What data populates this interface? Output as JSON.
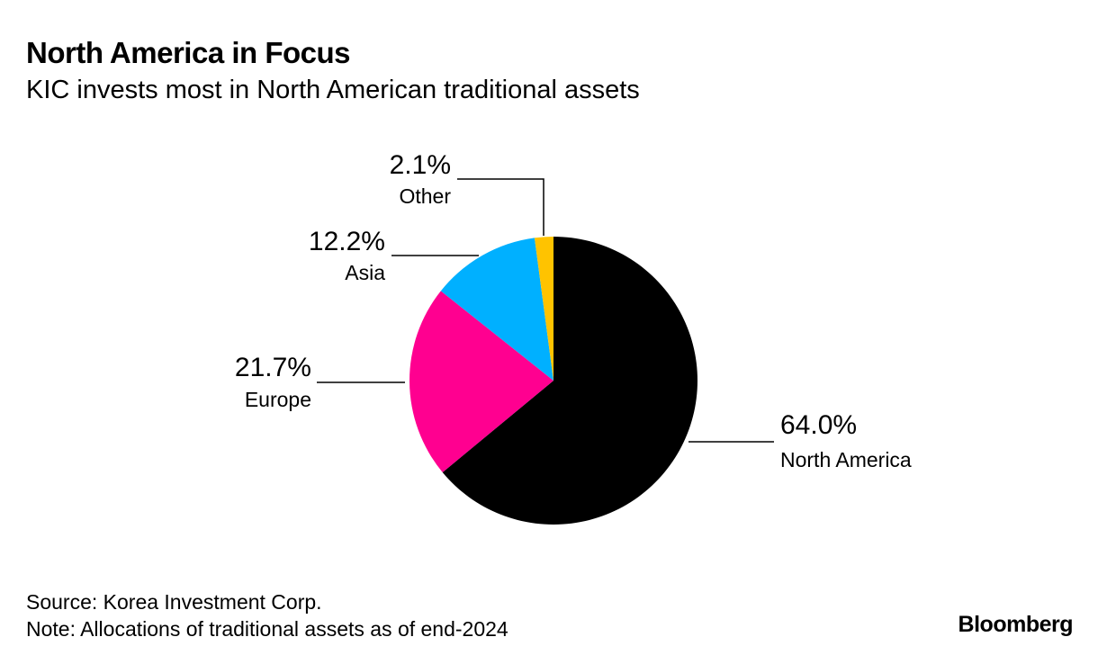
{
  "chart_data": {
    "type": "pie",
    "title": "North America in Focus",
    "subtitle": "KIC invests most in North American traditional assets",
    "start_angle_deg": 0,
    "direction": "clockwise",
    "slices": [
      {
        "label": "North America",
        "value": 64.0,
        "value_label": "64.0%",
        "color": "#000000"
      },
      {
        "label": "Europe",
        "value": 21.7,
        "value_label": "21.7%",
        "color": "#ff0090"
      },
      {
        "label": "Asia",
        "value": 12.2,
        "value_label": "12.2%",
        "color": "#00b0ff"
      },
      {
        "label": "Other",
        "value": 2.1,
        "value_label": "2.1%",
        "color": "#ffc300"
      }
    ]
  },
  "footer": {
    "source": "Source: Korea Investment Corp.",
    "note": "Note: Allocations of traditional assets as of end-2024",
    "brand": "Bloomberg"
  }
}
